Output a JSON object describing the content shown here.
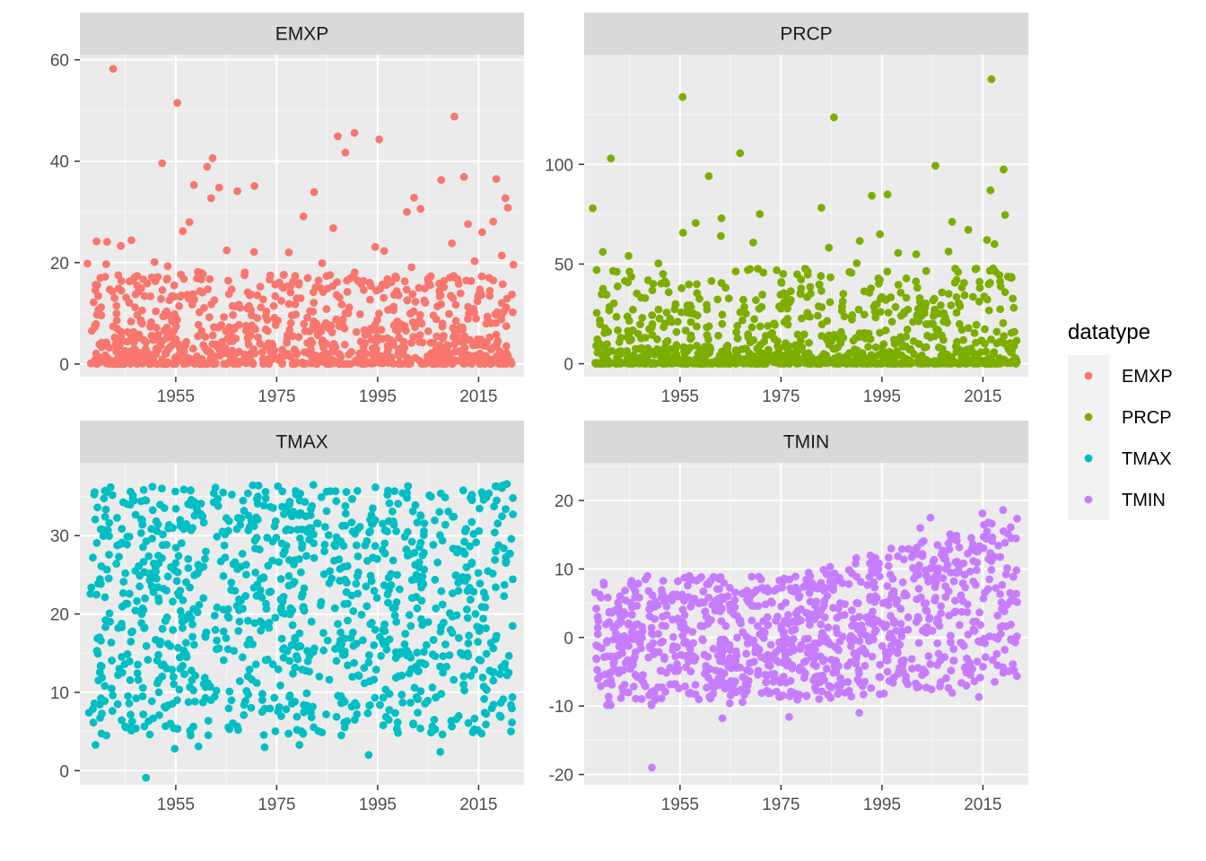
{
  "chart_data": {
    "type": "scatter",
    "facet_by": "datatype",
    "legend": {
      "title": "datatype",
      "position": "right",
      "entries": [
        "EMXP",
        "PRCP",
        "TMAX",
        "TMIN"
      ]
    },
    "colors": {
      "EMXP": "#F8766D",
      "PRCP": "#7CAE00",
      "TMAX": "#00BFC4",
      "TMIN": "#C77CFF"
    },
    "x_range": [
      1936,
      2024
    ],
    "x_ticks": [
      1955,
      1975,
      1995,
      2015
    ],
    "panels": [
      {
        "title": "EMXP",
        "series": "EMXP",
        "ylim": [
          -2.5,
          61
        ],
        "yticks": [
          0,
          20,
          40,
          60
        ],
        "points": [
          {
            "x": 1942.6,
            "y": 58.2
          },
          {
            "x": 1955.3,
            "y": 51.5
          },
          {
            "x": 2010.2,
            "y": 48.8
          },
          {
            "x": 1987.1,
            "y": 44.9
          },
          {
            "x": 1990.4,
            "y": 45.6
          },
          {
            "x": 1995.3,
            "y": 44.3
          },
          {
            "x": 1988.6,
            "y": 41.7
          },
          {
            "x": 1952.3,
            "y": 39.6
          },
          {
            "x": 1962.3,
            "y": 40.6
          },
          {
            "x": 1961.2,
            "y": 38.9
          },
          {
            "x": 2012.1,
            "y": 36.9
          },
          {
            "x": 2018.5,
            "y": 36.5
          },
          {
            "x": 1958.6,
            "y": 35.3
          },
          {
            "x": 1967.2,
            "y": 34.1
          },
          {
            "x": 1970.6,
            "y": 35.1
          },
          {
            "x": 1963.6,
            "y": 34.8
          },
          {
            "x": 1962.0,
            "y": 32.7
          },
          {
            "x": 1982.4,
            "y": 33.9
          },
          {
            "x": 2002.2,
            "y": 32.8
          },
          {
            "x": 2020.3,
            "y": 32.7
          },
          {
            "x": 2003.5,
            "y": 30.6
          },
          {
            "x": 2007.6,
            "y": 36.3
          },
          {
            "x": 2020.8,
            "y": 30.8
          },
          {
            "x": 1957.7,
            "y": 28.0
          },
          {
            "x": 1980.3,
            "y": 29.1
          },
          {
            "x": 2012.9,
            "y": 27.6
          },
          {
            "x": 2017.9,
            "y": 28.1
          },
          {
            "x": 1956.4,
            "y": 26.2
          },
          {
            "x": 1986.2,
            "y": 26.8
          },
          {
            "x": 2000.8,
            "y": 30.0
          },
          {
            "x": 2015.7,
            "y": 26.0
          },
          {
            "x": 1939.3,
            "y": 24.2
          },
          {
            "x": 1941.4,
            "y": 24.1
          },
          {
            "x": 1946.2,
            "y": 24.4
          },
          {
            "x": 1944.1,
            "y": 23.3
          },
          {
            "x": 1994.5,
            "y": 23.1
          },
          {
            "x": 1996.3,
            "y": 22.3
          },
          {
            "x": 2009.7,
            "y": 23.8
          },
          {
            "x": 1965.1,
            "y": 22.4
          },
          {
            "x": 1970.5,
            "y": 22.1
          },
          {
            "x": 1977.4,
            "y": 22.0
          },
          {
            "x": 2019.6,
            "y": 21.4
          },
          {
            "x": 1937.5,
            "y": 19.8
          },
          {
            "x": 1941.2,
            "y": 19.7
          },
          {
            "x": 1950.8,
            "y": 20.1
          },
          {
            "x": 1953.4,
            "y": 19.3
          },
          {
            "x": 1984.0,
            "y": 19.9
          },
          {
            "x": 2001.7,
            "y": 19.1
          },
          {
            "x": 2014.2,
            "y": 20.3
          },
          {
            "x": 2021.9,
            "y": 19.6
          }
        ],
        "bulk": {
          "count": 950,
          "ymax": 18.2,
          "skew": 2.3
        }
      },
      {
        "title": "PRCP",
        "series": "PRCP",
        "ylim": [
          -6.5,
          155
        ],
        "yticks": [
          0,
          50,
          100
        ],
        "points": [
          {
            "x": 2016.7,
            "y": 142.7
          },
          {
            "x": 1955.5,
            "y": 133.8
          },
          {
            "x": 1985.5,
            "y": 123.6
          },
          {
            "x": 1966.9,
            "y": 105.6
          },
          {
            "x": 1941.3,
            "y": 103.0
          },
          {
            "x": 2005.6,
            "y": 99.3
          },
          {
            "x": 2019.1,
            "y": 97.4
          },
          {
            "x": 1960.7,
            "y": 94.1
          },
          {
            "x": 2016.5,
            "y": 87.0
          },
          {
            "x": 1993.0,
            "y": 84.3
          },
          {
            "x": 1996.1,
            "y": 84.9
          },
          {
            "x": 1937.7,
            "y": 78.0
          },
          {
            "x": 1983.0,
            "y": 78.2
          },
          {
            "x": 1970.8,
            "y": 75.1
          },
          {
            "x": 2019.4,
            "y": 74.6
          },
          {
            "x": 1963.2,
            "y": 73.0
          },
          {
            "x": 1958.1,
            "y": 70.6
          },
          {
            "x": 2008.9,
            "y": 71.2
          },
          {
            "x": 1955.6,
            "y": 65.7
          },
          {
            "x": 1963.1,
            "y": 64.1
          },
          {
            "x": 1994.6,
            "y": 65.0
          },
          {
            "x": 2012.1,
            "y": 67.2
          },
          {
            "x": 2015.8,
            "y": 62.1
          },
          {
            "x": 1969.5,
            "y": 60.8
          },
          {
            "x": 1990.6,
            "y": 61.6
          },
          {
            "x": 2017.3,
            "y": 60.0
          },
          {
            "x": 1939.7,
            "y": 56.1
          },
          {
            "x": 1944.8,
            "y": 54.1
          },
          {
            "x": 1984.5,
            "y": 58.2
          },
          {
            "x": 1998.2,
            "y": 55.6
          },
          {
            "x": 2001.8,
            "y": 54.9
          },
          {
            "x": 2008.2,
            "y": 56.3
          },
          {
            "x": 2020.7,
            "y": 43.1
          },
          {
            "x": 1950.7,
            "y": 50.3
          },
          {
            "x": 1990.0,
            "y": 50.4
          }
        ],
        "bulk": {
          "count": 950,
          "ymax": 48,
          "skew": 3.2
        }
      },
      {
        "title": "TMAX",
        "series": "TMAX",
        "ylim": [
          -1.8,
          39.3
        ],
        "yticks": [
          0,
          10,
          20,
          30
        ],
        "points": [
          {
            "x": 1949.1,
            "y": -0.9
          },
          {
            "x": 1939.1,
            "y": 3.3
          },
          {
            "x": 1959.5,
            "y": 3.1
          },
          {
            "x": 1993.2,
            "y": 2.0
          },
          {
            "x": 2007.4,
            "y": 2.4
          },
          {
            "x": 2014.8,
            "y": 5.2
          },
          {
            "x": 1937.8,
            "y": 7.4
          },
          {
            "x": 1946.2,
            "y": 5.1
          },
          {
            "x": 1954.8,
            "y": 2.8
          },
          {
            "x": 1972.6,
            "y": 3.0
          },
          {
            "x": 1979.5,
            "y": 3.3
          },
          {
            "x": 2020.6,
            "y": 36.6
          },
          {
            "x": 2021.8,
            "y": 34.8
          },
          {
            "x": 1969.3,
            "y": 35.4
          }
        ],
        "bulk": {
          "count": 1050,
          "ymin": 4.5,
          "ymax": 36.5,
          "skew": 1
        }
      },
      {
        "title": "TMIN",
        "series": "TMIN",
        "ylim": [
          -21.5,
          25.5
        ],
        "yticks": [
          -20,
          -10,
          0,
          10,
          20
        ],
        "points": [
          {
            "x": 1949.4,
            "y": -19.0
          },
          {
            "x": 1963.4,
            "y": -11.8
          },
          {
            "x": 1976.6,
            "y": -11.6
          },
          {
            "x": 1990.5,
            "y": -11.0
          },
          {
            "x": 1940.9,
            "y": -9.5
          },
          {
            "x": 2008.9,
            "y": -8.1
          },
          {
            "x": 2014.2,
            "y": -8.7
          },
          {
            "x": 2019.0,
            "y": 18.6
          },
          {
            "x": 2014.9,
            "y": 18.1
          },
          {
            "x": 2004.6,
            "y": 17.5
          },
          {
            "x": 2002.6,
            "y": 16.0
          }
        ],
        "bulk": {
          "count": 1050,
          "trend": true
        }
      }
    ]
  }
}
